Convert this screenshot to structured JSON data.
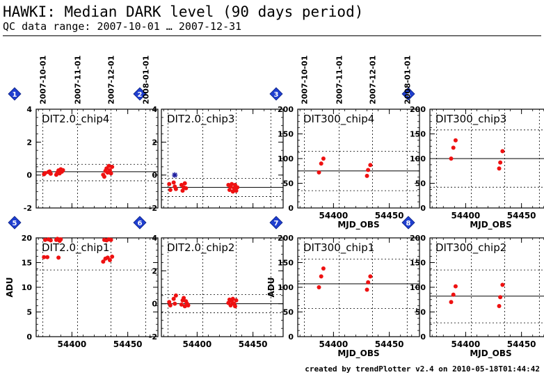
{
  "header": {
    "title": "HAWKI: Median DARK level (90 days period)",
    "subtitle": "QC data range: 2007-10-01 … 2007-12-31"
  },
  "footer": "created by trendPlotter v2.4 on 2010-05-18T01:44:42",
  "colors": {
    "points": "#ee1111",
    "badge": "#1f3fd0",
    "flag": "#2020a0",
    "axis": "#000000"
  },
  "top_date_labels": [
    "2007-10-01",
    "2007-11-01",
    "2007-12-01",
    "2008-01-01"
  ],
  "chart_data": [
    {
      "type": "scatter",
      "badge": "1",
      "panel_label": "DIT2.0_chip4",
      "xlim": [
        54368,
        54477
      ],
      "ylim": [
        -2,
        4
      ],
      "yticks": [
        -2,
        0,
        2,
        4
      ],
      "xticks": [
        54400,
        54450
      ],
      "show_xtick_labels": false,
      "xlabel": "",
      "ylabel": "",
      "ref_line": 0.2,
      "ref_band": [
        -0.35,
        0.65
      ],
      "points": [
        {
          "x": 54375,
          "y": 0.05
        },
        {
          "x": 54376,
          "y": 0.12
        },
        {
          "x": 54379,
          "y": 0.18
        },
        {
          "x": 54380,
          "y": 0.22
        },
        {
          "x": 54381,
          "y": 0.08
        },
        {
          "x": 54386,
          "y": 0.02
        },
        {
          "x": 54387,
          "y": 0.15
        },
        {
          "x": 54388,
          "y": 0.28
        },
        {
          "x": 54389,
          "y": 0.1
        },
        {
          "x": 54390,
          "y": 0.35
        },
        {
          "x": 54391,
          "y": 0.2
        },
        {
          "x": 54392,
          "y": 0.3
        },
        {
          "x": 54428,
          "y": 0.02
        },
        {
          "x": 54429,
          "y": -0.1
        },
        {
          "x": 54430,
          "y": 0.25
        },
        {
          "x": 54431,
          "y": 0.4
        },
        {
          "x": 54432,
          "y": 0.15
        },
        {
          "x": 54433,
          "y": 0.55
        },
        {
          "x": 54434,
          "y": 0.3
        },
        {
          "x": 54435,
          "y": 0.1
        },
        {
          "x": 54436,
          "y": 0.5
        }
      ],
      "flag_points": []
    },
    {
      "type": "scatter",
      "badge": "2",
      "panel_label": "DIT2.0_chip3",
      "xlim": [
        54368,
        54477
      ],
      "ylim": [
        -2,
        4
      ],
      "yticks": [
        -2,
        0,
        2,
        4
      ],
      "xticks": [
        54400,
        54450
      ],
      "show_xtick_labels": false,
      "xlabel": "",
      "ylabel": "",
      "ref_line": -0.75,
      "ref_band": [
        -1.3,
        -0.2
      ],
      "points": [
        {
          "x": 54375,
          "y": -0.55
        },
        {
          "x": 54376,
          "y": -0.9
        },
        {
          "x": 54379,
          "y": -0.45
        },
        {
          "x": 54380,
          "y": -0.7
        },
        {
          "x": 54381,
          "y": -0.85
        },
        {
          "x": 54386,
          "y": -0.6
        },
        {
          "x": 54387,
          "y": -0.95
        },
        {
          "x": 54388,
          "y": -0.75
        },
        {
          "x": 54389,
          "y": -0.5
        },
        {
          "x": 54390,
          "y": -0.8
        },
        {
          "x": 54428,
          "y": -0.6
        },
        {
          "x": 54429,
          "y": -0.9
        },
        {
          "x": 54430,
          "y": -0.7
        },
        {
          "x": 54431,
          "y": -0.55
        },
        {
          "x": 54432,
          "y": -1.0
        },
        {
          "x": 54433,
          "y": -0.8
        },
        {
          "x": 54434,
          "y": -0.6
        },
        {
          "x": 54435,
          "y": -0.95
        },
        {
          "x": 54436,
          "y": -0.75
        }
      ],
      "flag_points": [
        {
          "x": 54380,
          "y": 0.0
        }
      ]
    },
    {
      "type": "scatter",
      "badge": "3",
      "panel_label": "DIT300_chip4",
      "xlim": [
        54368,
        54477
      ],
      "ylim": [
        0,
        200
      ],
      "yticks": [
        0,
        50,
        100,
        150,
        200
      ],
      "xticks": [
        54400,
        54450
      ],
      "show_xtick_labels": true,
      "xlabel": "MJD_OBS",
      "ylabel": "",
      "ref_line": 75,
      "ref_band": [
        35,
        115
      ],
      "points": [
        {
          "x": 54387,
          "y": 72
        },
        {
          "x": 54389,
          "y": 90
        },
        {
          "x": 54391,
          "y": 100
        },
        {
          "x": 54430,
          "y": 65
        },
        {
          "x": 54431,
          "y": 77
        },
        {
          "x": 54433,
          "y": 87
        }
      ],
      "flag_points": []
    },
    {
      "type": "scatter",
      "badge": "4",
      "panel_label": "DIT300_chip3",
      "xlim": [
        54368,
        54477
      ],
      "ylim": [
        0,
        200
      ],
      "yticks": [
        0,
        50,
        100,
        150,
        200
      ],
      "xticks": [
        54400,
        54450
      ],
      "show_xtick_labels": true,
      "xlabel": "MJD_OBS",
      "ylabel": "",
      "ref_line": 100,
      "ref_band": [
        42,
        158
      ],
      "points": [
        {
          "x": 54387,
          "y": 100
        },
        {
          "x": 54389,
          "y": 122
        },
        {
          "x": 54391,
          "y": 137
        },
        {
          "x": 54430,
          "y": 80
        },
        {
          "x": 54431,
          "y": 92
        },
        {
          "x": 54433,
          "y": 115
        }
      ],
      "flag_points": []
    },
    {
      "type": "scatter",
      "badge": "5",
      "panel_label": "DIT2.0_chip1",
      "xlim": [
        54368,
        54477
      ],
      "ylim": [
        0,
        20
      ],
      "yticks": [
        0,
        5,
        10,
        15,
        20
      ],
      "xticks": [
        54400,
        54450
      ],
      "show_xtick_labels": true,
      "xlabel": "",
      "ylabel": "ADU",
      "ref_line": null,
      "ref_band": [
        13.5,
        null
      ],
      "points": [
        {
          "x": 54375,
          "y": 16.1
        },
        {
          "x": 54376,
          "y": 19.6
        },
        {
          "x": 54378,
          "y": 16.1
        },
        {
          "x": 54379,
          "y": 19.7
        },
        {
          "x": 54381,
          "y": 19.5
        },
        {
          "x": 54386,
          "y": 19.6
        },
        {
          "x": 54387,
          "y": 19.8
        },
        {
          "x": 54388,
          "y": 16.0
        },
        {
          "x": 54389,
          "y": 19.4
        },
        {
          "x": 54390,
          "y": 19.7
        },
        {
          "x": 54428,
          "y": 15.2
        },
        {
          "x": 54429,
          "y": 19.6
        },
        {
          "x": 54430,
          "y": 15.8
        },
        {
          "x": 54431,
          "y": 19.5
        },
        {
          "x": 54432,
          "y": 16.0
        },
        {
          "x": 54433,
          "y": 19.7
        },
        {
          "x": 54434,
          "y": 15.5
        },
        {
          "x": 54435,
          "y": 19.6
        },
        {
          "x": 54436,
          "y": 16.2
        }
      ],
      "flag_points": []
    },
    {
      "type": "scatter",
      "badge": "6",
      "panel_label": "DIT2.0_chip2",
      "xlim": [
        54368,
        54477
      ],
      "ylim": [
        -2,
        4
      ],
      "yticks": [
        -2,
        0,
        2,
        4
      ],
      "xticks": [
        54400,
        54450
      ],
      "show_xtick_labels": true,
      "xlabel": "",
      "ylabel": "",
      "ref_line": 0.0,
      "ref_band": [
        -0.55,
        0.55
      ],
      "points": [
        {
          "x": 54375,
          "y": 0.1
        },
        {
          "x": 54376,
          "y": -0.1
        },
        {
          "x": 54379,
          "y": 0.3
        },
        {
          "x": 54380,
          "y": 0.0
        },
        {
          "x": 54381,
          "y": 0.5
        },
        {
          "x": 54386,
          "y": -0.05
        },
        {
          "x": 54387,
          "y": 0.2
        },
        {
          "x": 54388,
          "y": 0.35
        },
        {
          "x": 54389,
          "y": -0.15
        },
        {
          "x": 54390,
          "y": 0.15
        },
        {
          "x": 54391,
          "y": 0.0
        },
        {
          "x": 54392,
          "y": -0.1
        },
        {
          "x": 54428,
          "y": 0.05
        },
        {
          "x": 54429,
          "y": 0.25
        },
        {
          "x": 54430,
          "y": -0.1
        },
        {
          "x": 54431,
          "y": 0.15
        },
        {
          "x": 54432,
          "y": 0.3
        },
        {
          "x": 54433,
          "y": 0.0
        },
        {
          "x": 54434,
          "y": -0.15
        },
        {
          "x": 54435,
          "y": 0.2
        }
      ],
      "flag_points": []
    },
    {
      "type": "scatter",
      "badge": "7",
      "panel_label": "DIT300_chip1",
      "xlim": [
        54368,
        54477
      ],
      "ylim": [
        0,
        200
      ],
      "yticks": [
        0,
        50,
        100,
        150,
        200
      ],
      "xticks": [
        54400,
        54450
      ],
      "show_xtick_labels": true,
      "xlabel": "MJD_OBS",
      "ylabel": "ADU",
      "ref_line": 107,
      "ref_band": [
        57,
        157
      ],
      "points": [
        {
          "x": 54387,
          "y": 100
        },
        {
          "x": 54389,
          "y": 122
        },
        {
          "x": 54391,
          "y": 138
        },
        {
          "x": 54430,
          "y": 95
        },
        {
          "x": 54431,
          "y": 110
        },
        {
          "x": 54433,
          "y": 122
        }
      ],
      "flag_points": []
    },
    {
      "type": "scatter",
      "badge": "8",
      "panel_label": "DIT300_chip2",
      "xlim": [
        54368,
        54477
      ],
      "ylim": [
        0,
        200
      ],
      "yticks": [
        0,
        50,
        100,
        150,
        200
      ],
      "xticks": [
        54400,
        54450
      ],
      "show_xtick_labels": true,
      "xlabel": "MJD_OBS",
      "ylabel": "",
      "ref_line": 82,
      "ref_band": [
        28,
        135
      ],
      "points": [
        {
          "x": 54387,
          "y": 70
        },
        {
          "x": 54389,
          "y": 85
        },
        {
          "x": 54391,
          "y": 102
        },
        {
          "x": 54430,
          "y": 62
        },
        {
          "x": 54431,
          "y": 80
        },
        {
          "x": 54433,
          "y": 105
        }
      ],
      "flag_points": []
    }
  ]
}
